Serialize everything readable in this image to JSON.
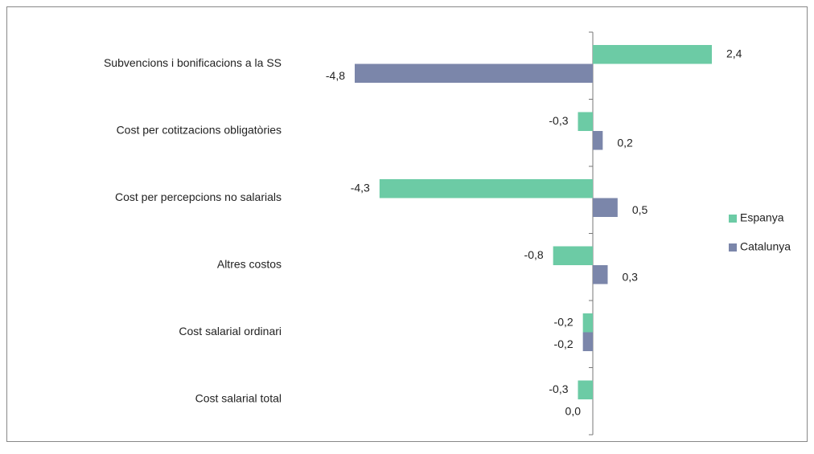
{
  "chart_data": {
    "type": "bar",
    "orientation": "horizontal",
    "categories": [
      "Subvencions i bonificacions a la SS",
      "Cost per cotitzacions obligatòries",
      "Cost per percepcions no salarials",
      "Altres costos",
      "Cost salarial ordinari",
      "Cost salarial total"
    ],
    "series": [
      {
        "name": "Espanya",
        "color": "#6ccba5",
        "values": [
          2.4,
          -0.3,
          -4.3,
          -0.8,
          -0.2,
          -0.3
        ],
        "value_labels": [
          "2,4",
          "-0,3",
          "-4,3",
          "-0,8",
          "-0,2",
          "-0,3"
        ]
      },
      {
        "name": "Catalunya",
        "color": "#7b86aa",
        "values": [
          -4.8,
          0.2,
          0.5,
          0.3,
          -0.2,
          0.0
        ],
        "value_labels": [
          "-4,8",
          "0,2",
          "0,5",
          "0,3",
          "-0,2",
          "0,0"
        ]
      }
    ],
    "xlim": [
      -6,
      3
    ],
    "legend": "right"
  }
}
